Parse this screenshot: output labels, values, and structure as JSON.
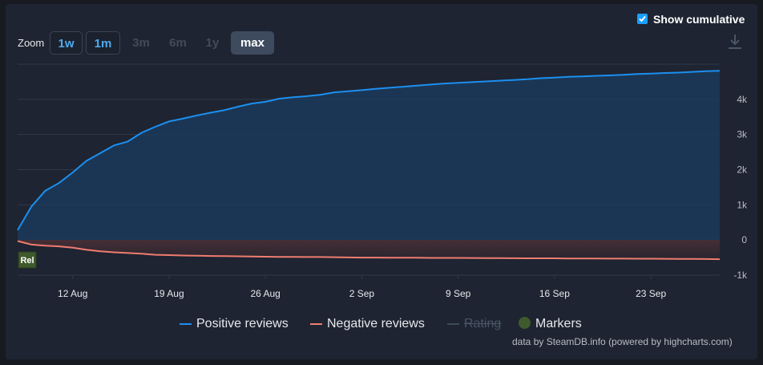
{
  "zoom": {
    "label": "Zoom",
    "buttons": [
      {
        "label": "1w",
        "state": "available"
      },
      {
        "label": "1m",
        "state": "available"
      },
      {
        "label": "3m",
        "state": "disabled"
      },
      {
        "label": "6m",
        "state": "disabled"
      },
      {
        "label": "1y",
        "state": "disabled"
      },
      {
        "label": "max",
        "state": "selected"
      }
    ]
  },
  "cumulative": {
    "label": "Show cumulative",
    "checked": true
  },
  "legend": [
    {
      "label": "Positive reviews",
      "color": "#1c8ff0",
      "enabled": true
    },
    {
      "label": "Negative reviews",
      "color": "#f07c70",
      "enabled": true
    },
    {
      "label": "Rating",
      "color": "#3c4a5a",
      "enabled": false
    },
    {
      "label": "Markers",
      "color": "#3f5a2c",
      "enabled": true
    }
  ],
  "credit": "data by SteamDB.info (powered by highcharts.com)",
  "marker": {
    "label": "Rel"
  },
  "chart_data": {
    "type": "area",
    "xlabel": "",
    "ylabel": "",
    "x_ticks": [
      "12 Aug",
      "19 Aug",
      "26 Aug",
      "2 Sep",
      "9 Sep",
      "16 Sep",
      "23 Sep"
    ],
    "y_ticks": [
      "-1k",
      "0",
      "1k",
      "2k",
      "3k",
      "4k"
    ],
    "xlim": [
      "2025-08-08",
      "2025-09-28"
    ],
    "ylim": [
      -1000,
      5000
    ],
    "grid": true,
    "legend_position": "bottom",
    "x": [
      "2025-08-08",
      "2025-08-09",
      "2025-08-10",
      "2025-08-11",
      "2025-08-12",
      "2025-08-13",
      "2025-08-14",
      "2025-08-15",
      "2025-08-16",
      "2025-08-17",
      "2025-08-18",
      "2025-08-19",
      "2025-08-20",
      "2025-08-21",
      "2025-08-22",
      "2025-08-23",
      "2025-08-24",
      "2025-08-25",
      "2025-08-26",
      "2025-08-27",
      "2025-08-28",
      "2025-08-29",
      "2025-08-30",
      "2025-08-31",
      "2025-09-01",
      "2025-09-02",
      "2025-09-03",
      "2025-09-04",
      "2025-09-05",
      "2025-09-06",
      "2025-09-07",
      "2025-09-08",
      "2025-09-09",
      "2025-09-10",
      "2025-09-11",
      "2025-09-12",
      "2025-09-13",
      "2025-09-14",
      "2025-09-15",
      "2025-09-16",
      "2025-09-17",
      "2025-09-18",
      "2025-09-19",
      "2025-09-20",
      "2025-09-21",
      "2025-09-22",
      "2025-09-23",
      "2025-09-24",
      "2025-09-25",
      "2025-09-26",
      "2025-09-27",
      "2025-09-28"
    ],
    "series": [
      {
        "name": "Positive reviews",
        "color": "#1c8ff0",
        "values": [
          280,
          950,
          1400,
          1620,
          1920,
          2250,
          2470,
          2690,
          2800,
          3050,
          3220,
          3370,
          3450,
          3540,
          3620,
          3690,
          3790,
          3880,
          3930,
          4020,
          4060,
          4090,
          4130,
          4200,
          4230,
          4260,
          4300,
          4330,
          4360,
          4390,
          4420,
          4450,
          4470,
          4490,
          4510,
          4530,
          4550,
          4570,
          4600,
          4620,
          4640,
          4650,
          4670,
          4680,
          4700,
          4720,
          4730,
          4750,
          4760,
          4780,
          4800,
          4810
        ]
      },
      {
        "name": "Negative reviews",
        "color": "#f07c70",
        "values": [
          -30,
          -130,
          -160,
          -180,
          -220,
          -280,
          -320,
          -350,
          -370,
          -390,
          -420,
          -430,
          -440,
          -445,
          -455,
          -460,
          -465,
          -470,
          -475,
          -480,
          -480,
          -485,
          -485,
          -490,
          -495,
          -500,
          -500,
          -505,
          -505,
          -505,
          -510,
          -510,
          -510,
          -512,
          -515,
          -515,
          -518,
          -520,
          -520,
          -522,
          -525,
          -525,
          -527,
          -530,
          -530,
          -532,
          -532,
          -535,
          -537,
          -540,
          -542,
          -545
        ]
      }
    ]
  }
}
